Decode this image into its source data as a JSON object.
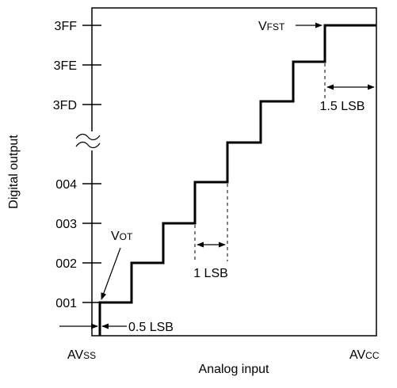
{
  "y_axis": {
    "title": "Digital output",
    "ticks": [
      "001",
      "002",
      "003",
      "004",
      "3FD",
      "3FE",
      "3FF"
    ]
  },
  "x_axis": {
    "title": "Analog input",
    "left_main": "AV",
    "left_sub": "SS",
    "right_main": "AV",
    "right_sub": "CC"
  },
  "annotations": {
    "vot_main": "V",
    "vot_sub": "OT",
    "vfst_main": "V",
    "vfst_sub": "FST",
    "half_lsb": "0.5 LSB",
    "one_lsb": "1 LSB",
    "one_half_lsb": "1.5 LSB"
  }
}
